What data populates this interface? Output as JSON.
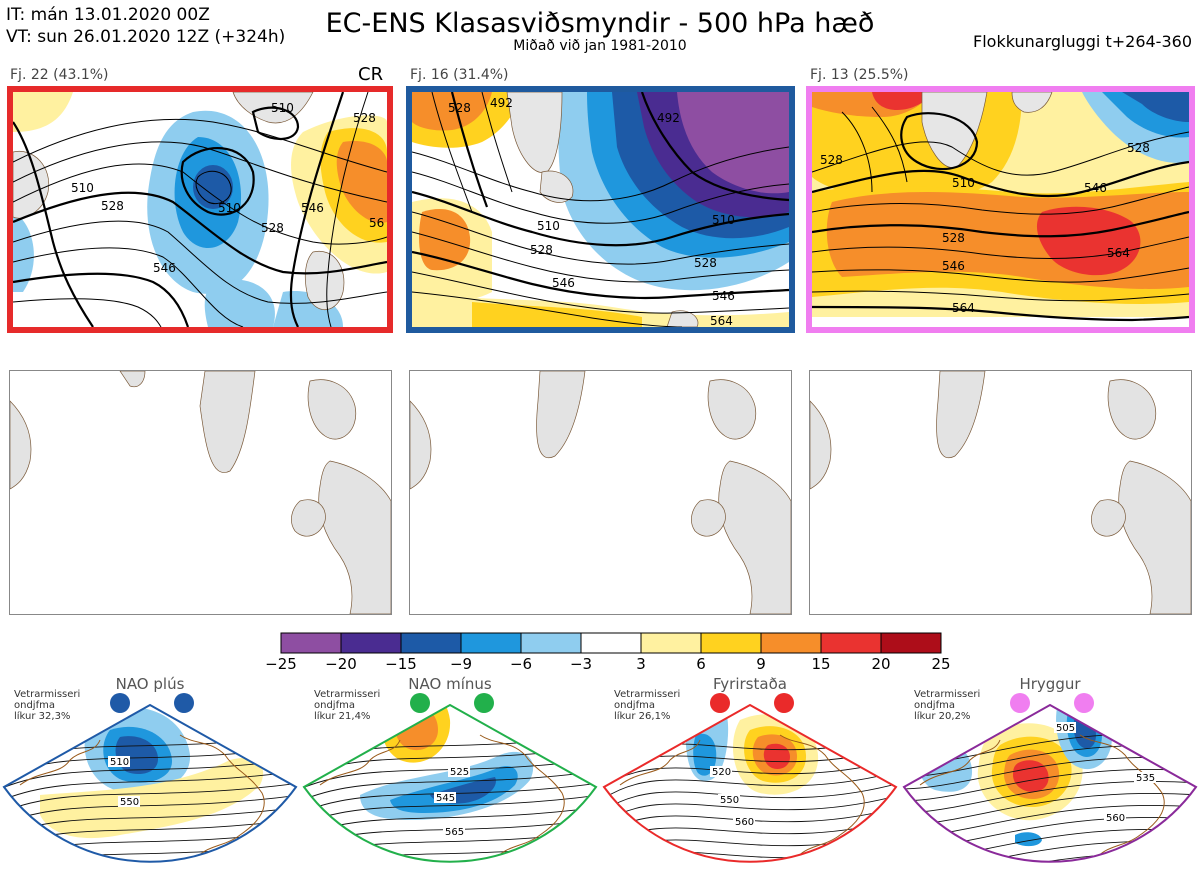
{
  "header": {
    "it_line": "IT: mán 13.01.2020 00Z",
    "vt_line": "VT: sun 26.01.2020 12Z  (+324h)",
    "title": "EC-ENS Klasasviðsmyndir - 500 hPa hæð",
    "subtitle": "Miðað við jan 1981-2010",
    "window": "Flokkunargluggi t+264-360"
  },
  "clusters": [
    {
      "label": "Fj. 22 (43.1%)",
      "tag": "CR",
      "border_color": "#e62a2a",
      "contour_labels": [
        "510",
        "510",
        "510",
        "528",
        "528",
        "528",
        "546",
        "546",
        "56"
      ]
    },
    {
      "label": "Fj. 16 (31.4%)",
      "tag": "",
      "border_color": "#1f5a9e",
      "contour_labels": [
        "528",
        "492",
        "492",
        "510",
        "528",
        "546",
        "510",
        "528",
        "546",
        "564"
      ]
    },
    {
      "label": "Fj. 13 (25.5%)",
      "tag": "",
      "border_color": "#f07ef0",
      "contour_labels": [
        "528",
        "510",
        "528",
        "546",
        "528",
        "546",
        "564",
        "564"
      ]
    }
  ],
  "colorbar": {
    "colors": [
      "#8e4ea2",
      "#4a2c91",
      "#1d5aa7",
      "#1f97dd",
      "#8fcdef",
      "#ffffff",
      "#fff1a0",
      "#ffd21f",
      "#f68e2a",
      "#ea3330",
      "#ad0d19"
    ],
    "ticks": [
      "−25",
      "−20",
      "−15",
      "−9",
      "−6",
      "−3",
      "3",
      "6",
      "9",
      "15",
      "20",
      "25"
    ]
  },
  "regimes": [
    {
      "name": "NAO plús",
      "note": [
        "Vetrarmisseri",
        "ondjfma",
        "líkur 32,3%"
      ],
      "dot_color": "#1f5aa7",
      "border_color": "#1f5aa7",
      "contour_labels": [
        "510",
        "550"
      ]
    },
    {
      "name": "NAO mínus",
      "note": [
        "Vetrarmisseri",
        "ondjfma",
        "líkur 21,4%"
      ],
      "dot_color": "#22b04b",
      "border_color": "#22b04b",
      "contour_labels": [
        "525",
        "545",
        "565"
      ]
    },
    {
      "name": "Fyrirstaða",
      "note": [
        "Vetrarmisseri",
        "ondjfma",
        "líkur 26,1%"
      ],
      "dot_color": "#ea2a2a",
      "border_color": "#ea2a2a",
      "contour_labels": [
        "520",
        "550",
        "560"
      ]
    },
    {
      "name": "Hryggur",
      "note": [
        "Vetrarmisseri",
        "ondjfma",
        "líkur 20,2%"
      ],
      "dot_color": "#f07ef0",
      "border_color": "#8a2a9a",
      "contour_labels": [
        "505",
        "535",
        "560"
      ]
    }
  ]
}
